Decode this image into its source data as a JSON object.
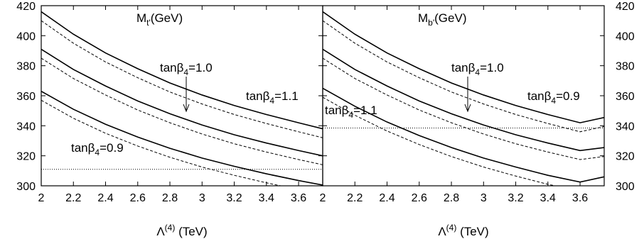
{
  "chart_data": [
    {
      "type": "line",
      "panel": "left",
      "title": {
        "main": "M",
        "sub": "t'",
        "unit": "(GeV)"
      },
      "xlabel": {
        "symbol": "Λ",
        "sup": "(4)",
        "unit": " (TeV)"
      },
      "xlim": [
        2,
        3.75
      ],
      "ylim": [
        300,
        420
      ],
      "x_ticks": [
        "2",
        "2.2",
        "2.4",
        "2.6",
        "2.8",
        "3",
        "3.2",
        "3.4",
        "3.6"
      ],
      "y_ticks": [
        "300",
        "320",
        "340",
        "360",
        "380",
        "400",
        "420"
      ],
      "y_tick_side": "left",
      "x": [
        2.0,
        2.2,
        2.4,
        2.6,
        2.8,
        3.0,
        3.2,
        3.4,
        3.6,
        3.75
      ],
      "series": [
        {
          "style": "solid",
          "values": [
            416,
            401,
            388.5,
            378,
            368.5,
            360.5,
            353.5,
            347.5,
            342,
            338
          ]
        },
        {
          "style": "dashed",
          "values": [
            410,
            395,
            382.5,
            372,
            362.5,
            354.5,
            347.5,
            341.5,
            336,
            332
          ]
        },
        {
          "style": "solid",
          "values": [
            391,
            377.5,
            366.5,
            356.5,
            348,
            340.5,
            334,
            328.5,
            323.5,
            320
          ]
        },
        {
          "style": "dashed",
          "values": [
            385,
            371.5,
            360.5,
            350.5,
            342,
            334.5,
            328,
            322.5,
            317.5,
            314
          ]
        },
        {
          "style": "solid",
          "values": [
            363,
            351,
            341,
            332.5,
            325,
            318.5,
            313,
            308,
            303.5,
            300.5
          ]
        },
        {
          "style": "dashed",
          "values": [
            357,
            345,
            335,
            326.5,
            319,
            312.5,
            307,
            302,
            297.5,
            294.5
          ]
        }
      ],
      "reference_line": {
        "style": "dotted",
        "y": 311
      },
      "annotations": [
        {
          "base": "tanβ",
          "sub": "4",
          "suffix": "=1.0",
          "arrow": true
        },
        {
          "base": "tanβ",
          "sub": "4",
          "suffix": "=1.1"
        },
        {
          "base": "tanβ",
          "sub": "4",
          "suffix": "=0.9"
        }
      ]
    },
    {
      "type": "line",
      "panel": "right",
      "title": {
        "main": "M",
        "sub": "b'",
        "unit": "(GeV)"
      },
      "xlabel": {
        "symbol": "Λ",
        "sup": "(4)",
        "unit": " (TeV)"
      },
      "xlim": [
        2,
        3.75
      ],
      "ylim": [
        300,
        420
      ],
      "x_ticks": [
        "2",
        "2.2",
        "2.4",
        "2.6",
        "2.8",
        "3",
        "3.2",
        "3.4",
        "3.6"
      ],
      "y_ticks": [
        "300",
        "320",
        "340",
        "360",
        "380",
        "400",
        "420"
      ],
      "y_tick_side": "right",
      "x": [
        2.0,
        2.2,
        2.4,
        2.6,
        2.8,
        3.0,
        3.2,
        3.4,
        3.6,
        3.75
      ],
      "series": [
        {
          "style": "solid",
          "values": [
            416,
            401,
            388.5,
            378,
            368.5,
            360.5,
            353.5,
            347.5,
            342,
            345.5
          ]
        },
        {
          "style": "dashed",
          "values": [
            410,
            395,
            382.5,
            372,
            362.5,
            354.5,
            347.5,
            341.5,
            336,
            339.5
          ]
        },
        {
          "style": "solid",
          "values": [
            391,
            377.5,
            366.5,
            356.5,
            348,
            340.5,
            334,
            328.5,
            323.5,
            325.5
          ]
        },
        {
          "style": "dashed",
          "values": [
            385,
            371.5,
            360.5,
            350.5,
            342,
            334.5,
            328,
            322.5,
            317.5,
            319.5
          ]
        },
        {
          "style": "solid",
          "values": [
            365,
            353,
            342.5,
            333.5,
            325.5,
            318.5,
            312.5,
            307,
            302.5,
            306
          ]
        },
        {
          "style": "dashed",
          "values": [
            359,
            347,
            336.5,
            327.5,
            319.5,
            312.5,
            306.5,
            301,
            296.5,
            300
          ]
        }
      ],
      "reference_line": {
        "style": "dotted",
        "y": 338.5
      },
      "annotations": [
        {
          "base": "tanβ",
          "sub": "4",
          "suffix": "=1.0",
          "arrow": true
        },
        {
          "base": "tanβ",
          "sub": "4",
          "suffix": "=0.9"
        },
        {
          "base": "tanβ",
          "sub": "4",
          "suffix": "=1.1"
        }
      ]
    }
  ]
}
